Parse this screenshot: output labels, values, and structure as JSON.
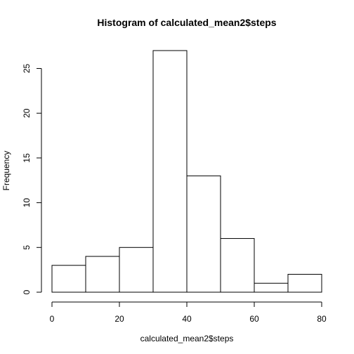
{
  "chart_data": {
    "type": "bar",
    "title": "Histogram of calculated_mean2$steps",
    "xlabel": "calculated_mean2$steps",
    "ylabel": "Frequency",
    "bins": [
      {
        "start": 0,
        "end": 10,
        "count": 3
      },
      {
        "start": 10,
        "end": 20,
        "count": 4
      },
      {
        "start": 20,
        "end": 30,
        "count": 5
      },
      {
        "start": 30,
        "end": 40,
        "count": 27
      },
      {
        "start": 40,
        "end": 50,
        "count": 13
      },
      {
        "start": 50,
        "end": 60,
        "count": 6
      },
      {
        "start": 60,
        "end": 70,
        "count": 1
      },
      {
        "start": 70,
        "end": 80,
        "count": 2
      }
    ],
    "xlim": [
      0,
      80
    ],
    "ylim": [
      0,
      27
    ],
    "x_ticks": [
      0,
      20,
      40,
      60,
      80
    ],
    "y_ticks": [
      0,
      5,
      10,
      15,
      20,
      25
    ],
    "grid": false,
    "colors": {
      "bar_fill": "#ffffff",
      "bar_stroke": "#000000"
    }
  }
}
